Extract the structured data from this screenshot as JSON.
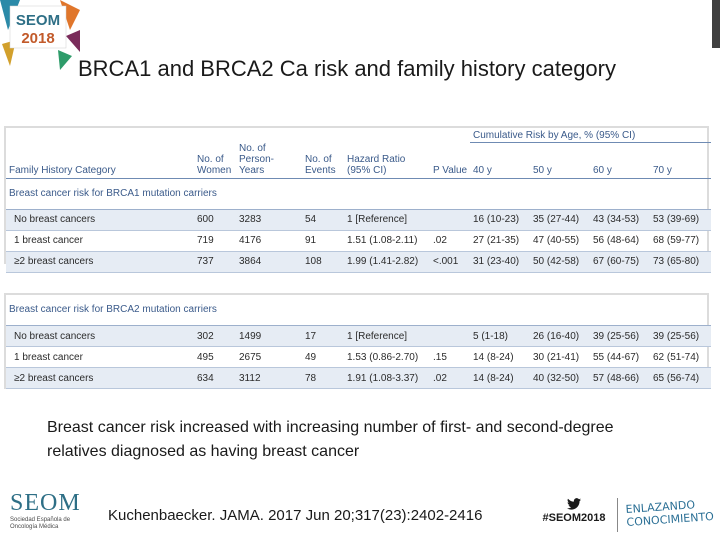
{
  "logo": {
    "brand": "SEOM",
    "year": "2018"
  },
  "slide": {
    "title": "BRCA1 and BRCA2 Ca risk and family  history category"
  },
  "table": {
    "cumulative_header": "Cumulative Risk by Age, % (95% CI)",
    "columns": {
      "category": "Family History Category",
      "women": "No. of Women",
      "person_years": "No. of Person-Years",
      "events": "No. of Events",
      "hr": "Hazard Ratio (95% CI)",
      "p": "P Value",
      "a40": "40 y",
      "a50": "50 y",
      "a60": "60 y",
      "a70": "70 y"
    },
    "brca1": {
      "section": "Breast cancer risk for BRCA1 mutation carriers",
      "rows": [
        {
          "label": "No breast cancers",
          "women": "600",
          "py": "3283",
          "events": "54",
          "hr": "1 [Reference]",
          "p": "",
          "a40": "16 (10-23)",
          "a50": "35 (27-44)",
          "a60": "43 (34-53)",
          "a70": "53 (39-69)"
        },
        {
          "label": "1 breast cancer",
          "women": "719",
          "py": "4176",
          "events": "91",
          "hr": "1.51 (1.08-2.11)",
          "p": ".02",
          "a40": "27 (21-35)",
          "a50": "47 (40-55)",
          "a60": "56 (48-64)",
          "a70": "68 (59-77)"
        },
        {
          "label": "≥2 breast cancers",
          "women": "737",
          "py": "3864",
          "events": "108",
          "hr": "1.99 (1.41-2.82)",
          "p": "<.001",
          "a40": "31 (23-40)",
          "a50": "50 (42-58)",
          "a60": "67 (60-75)",
          "a70": "73 (65-80)"
        }
      ]
    },
    "brca2": {
      "section": "Breast cancer risk for BRCA2 mutation carriers",
      "rows": [
        {
          "label": "No breast cancers",
          "women": "302",
          "py": "1499",
          "events": "17",
          "hr": "1 [Reference]",
          "p": "",
          "a40": "5 (1-18)",
          "a50": "26 (16-40)",
          "a60": "39 (25-56)",
          "a70": "39 (25-56)"
        },
        {
          "label": "1 breast cancer",
          "women": "495",
          "py": "2675",
          "events": "49",
          "hr": "1.53 (0.86-2.70)",
          "p": ".15",
          "a40": "14 (8-24)",
          "a50": "30 (21-41)",
          "a60": "55 (44-67)",
          "a70": "62 (51-74)"
        },
        {
          "label": "≥2 breast cancers",
          "women": "634",
          "py": "3112",
          "events": "78",
          "hr": "1.91 (1.08-3.37)",
          "p": ".02",
          "a40": "14 (8-24)",
          "a50": "40 (32-50)",
          "a60": "57 (48-66)",
          "a70": "65 (56-74)"
        }
      ]
    }
  },
  "caption": "Breast cancer risk increased with increasing number of first- and second-degree relatives diagnosed as having breast cancer",
  "citation": "Kuchenbaecker. JAMA. 2017 Jun 20;317(23):2402-2416",
  "footer": {
    "seom_word": "SEOM",
    "seom_sub": "Sociedad Española de Oncología Médica",
    "hashtag": "#SEOM2018",
    "slogan_line1": "ENLAZANDO",
    "slogan_line2": "CONOCIMIENTO"
  },
  "colors": {
    "header_text": "#3a5a8a",
    "shade": "#e6ecf4",
    "seom_teal": "#2e6f86"
  }
}
